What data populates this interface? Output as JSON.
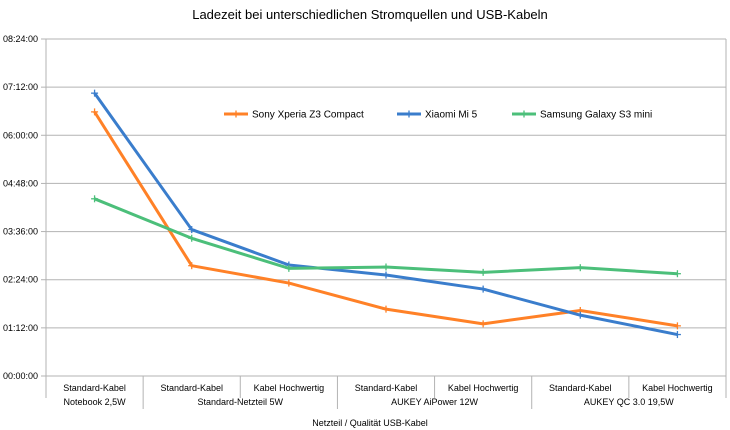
{
  "chart_data": {
    "type": "line",
    "title": "Ladezeit bei unterschiedlichen Stromquellen und USB-Kabeln",
    "xlabel": "Netzteil / Qualität USB-Kabel",
    "ylabel": "",
    "y_ticks": [
      "00:00:00",
      "01:12:00",
      "02:24:00",
      "03:36:00",
      "04:48:00",
      "06:00:00",
      "07:12:00",
      "08:24:00"
    ],
    "ylim_minutes": [
      0,
      504
    ],
    "grid": true,
    "legend_position": "top-right, inside plot",
    "categories": [
      "Standard-Kabel",
      "Standard-Kabel",
      "Kabel Hochwertig",
      "Standard-Kabel",
      "Kabel Hochwertig",
      "Standard-Kabel",
      "Kabel Hochwertig"
    ],
    "groups": [
      {
        "label": "Notebook 2,5W",
        "span": 1
      },
      {
        "label": "Standard-Netzteil 5W",
        "span": 2
      },
      {
        "label": "AUKEY AiPower 12W",
        "span": 2
      },
      {
        "label": "AUKEY QC 3.0 19,5W",
        "span": 2
      }
    ],
    "series": [
      {
        "name": "Sony Xperia Z3 Compact",
        "color": "#ff8127",
        "values_minutes": [
          395,
          165,
          139,
          100,
          78,
          98,
          75
        ]
      },
      {
        "name": "Xiaomi Mi 5",
        "color": "#3a7dcc",
        "values_minutes": [
          423,
          219,
          166,
          151,
          130,
          91,
          62
        ]
      },
      {
        "name": "Samsung Galaxy S3 mini",
        "color": "#4cbf7a",
        "values_minutes": [
          265,
          206,
          161,
          163,
          155,
          162,
          153
        ]
      }
    ]
  }
}
